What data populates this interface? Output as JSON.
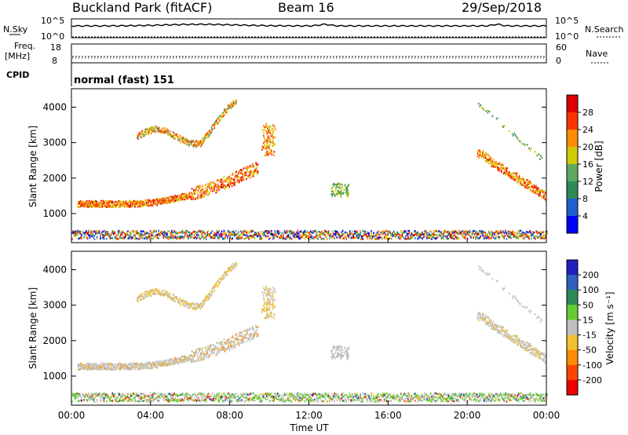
{
  "header": {
    "station": "Buckland Park (fitACF)",
    "beam": "Beam 16",
    "date": "29/Sep/2018"
  },
  "top_panels": {
    "nsky_label": "N.Sky",
    "nsky_top": "10^5",
    "nsky_bottom": "10^0",
    "nsearch_label": "N.Search",
    "nsearch_top": "10^5",
    "nsearch_bottom": "10^0",
    "freq_label_1": "Freq.",
    "freq_label_2": "[MHz]",
    "freq_top": "18",
    "freq_bottom": "8",
    "nave_label": "Nave",
    "nave_top": "60",
    "nave_bottom": "0",
    "cpid_label": "CPID",
    "cpid_value": "normal (fast) 151"
  },
  "chart_data": [
    {
      "type": "heatmap",
      "panel": "power",
      "ylabel": "Slant Range [km]",
      "xlabel": "",
      "x_ticks": [
        "00:00",
        "04:00",
        "08:00",
        "12:00",
        "16:00",
        "20:00",
        "00:00"
      ],
      "y_ticks": [
        1000,
        2000,
        3000,
        4000
      ],
      "ylim": [
        180,
        4520
      ],
      "xlim_hours": [
        0,
        24
      ],
      "colorbar": {
        "label": "Power [dB]",
        "ticks": [
          "4",
          "8",
          "12",
          "16",
          "20",
          "24",
          "28"
        ],
        "range": [
          0,
          30
        ],
        "colors": [
          "#0000ff",
          "#1f5fd0",
          "#2e8b57",
          "#5fa860",
          "#cccc00",
          "#ff8c00",
          "#ff3300",
          "#dd0000"
        ]
      },
      "features": [
        {
          "name": "ground scatter",
          "t": [
            0,
            24
          ],
          "r": [
            250,
            480
          ],
          "level": 10
        },
        {
          "name": "lower F band",
          "t": [
            0.3,
            9.3
          ],
          "r": [
            1150,
            2250
          ],
          "level": 22
        },
        {
          "name": "upper F band",
          "t": [
            3.3,
            8.2
          ],
          "r": [
            2950,
            4050
          ],
          "level": 19
        },
        {
          "name": "late evening band",
          "t": [
            20.5,
            24
          ],
          "r": [
            1350,
            2700
          ],
          "level": 22
        }
      ]
    },
    {
      "type": "heatmap",
      "panel": "velocity",
      "ylabel": "Slant Range [km]",
      "xlabel": "Time UT",
      "x_ticks": [
        "00:00",
        "04:00",
        "08:00",
        "12:00",
        "16:00",
        "20:00",
        "00:00"
      ],
      "y_ticks": [
        1000,
        2000,
        3000,
        4000
      ],
      "ylim": [
        180,
        4520
      ],
      "xlim_hours": [
        0,
        24
      ],
      "colorbar": {
        "label": "Velocity [m s⁻¹]",
        "ticks": [
          "200",
          "100",
          "50",
          "15",
          "-15",
          "-50",
          "-100",
          "-200"
        ],
        "colors": [
          "#2020c0",
          "#3060c0",
          "#2e8b57",
          "#66cc33",
          "#c0c0c0",
          "#f0c030",
          "#ff8c00",
          "#ff4500",
          "#ee0000"
        ]
      }
    }
  ]
}
